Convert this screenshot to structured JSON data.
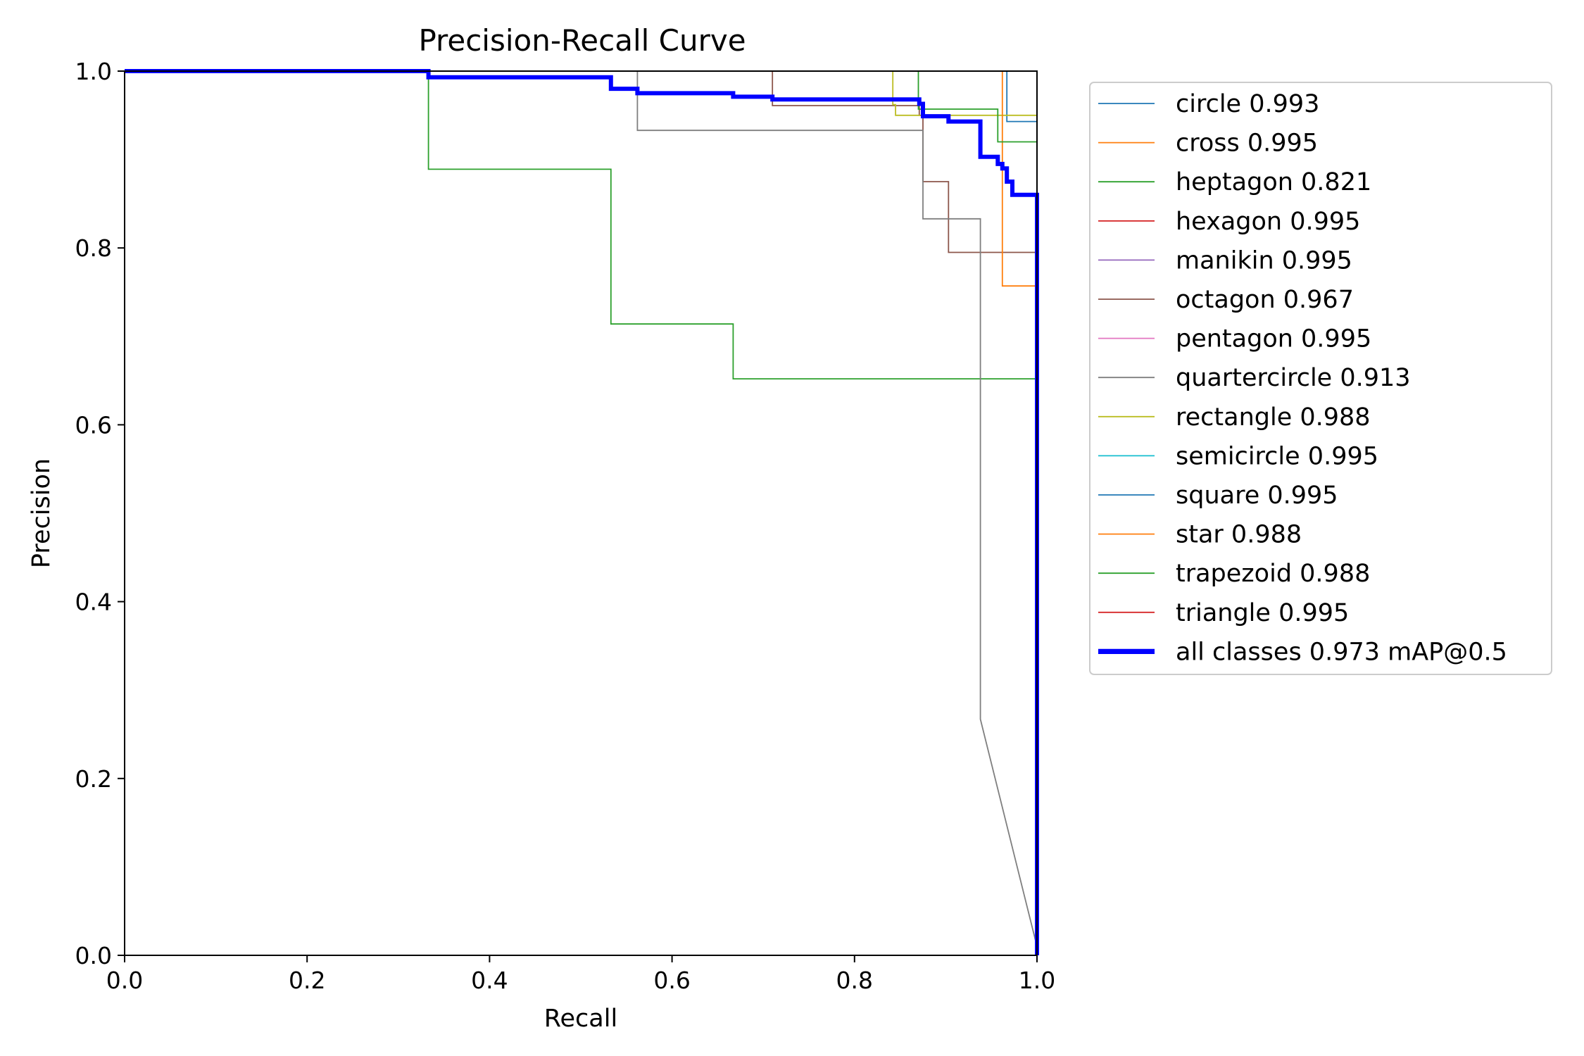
{
  "chart_data": {
    "type": "line",
    "title": "Precision-Recall Curve",
    "xlabel": "Recall",
    "ylabel": "Precision",
    "xlim": [
      0,
      1
    ],
    "ylim": [
      0,
      1
    ],
    "xticks": [
      "0.0",
      "0.2",
      "0.4",
      "0.6",
      "0.8",
      "1.0"
    ],
    "yticks": [
      "0.0",
      "0.2",
      "0.4",
      "0.6",
      "0.8",
      "1.0"
    ],
    "grid": false,
    "legend_position": "outside-right",
    "series": [
      {
        "name": "circle 0.993",
        "color": "#1f77b4",
        "width": 1,
        "x": [
          0,
          0.967,
          0.967,
          0.973,
          0.973,
          1.0,
          1.0
        ],
        "y": [
          1,
          1,
          0.943,
          0.943,
          0.943,
          0.943,
          0
        ]
      },
      {
        "name": "cross 0.995",
        "color": "#ff7f0e",
        "width": 1,
        "x": [
          0,
          1.0,
          1.0
        ],
        "y": [
          1,
          1,
          0
        ]
      },
      {
        "name": "heptagon 0.821",
        "color": "#2ca02c",
        "width": 1,
        "x": [
          0,
          0.333,
          0.333,
          0.533,
          0.533,
          0.667,
          0.667,
          1.0,
          1.0
        ],
        "y": [
          1,
          1,
          0.889,
          0.889,
          0.714,
          0.714,
          0.652,
          0.652,
          0
        ]
      },
      {
        "name": "hexagon 0.995",
        "color": "#d62728",
        "width": 1,
        "x": [
          0,
          1.0,
          1.0
        ],
        "y": [
          1,
          1,
          0
        ]
      },
      {
        "name": "manikin 0.995",
        "color": "#9467bd",
        "width": 1,
        "x": [
          0,
          1.0,
          1.0
        ],
        "y": [
          1,
          1,
          0
        ]
      },
      {
        "name": "octagon 0.967",
        "color": "#8c564b",
        "width": 1,
        "x": [
          0,
          0.71,
          0.71,
          0.871,
          0.871,
          0.875,
          0.875,
          0.903,
          0.903,
          1.0,
          1.0
        ],
        "y": [
          1,
          1,
          0.961,
          0.961,
          0.95,
          0.95,
          0.875,
          0.875,
          0.795,
          0.795,
          0
        ]
      },
      {
        "name": "pentagon 0.995",
        "color": "#e377c2",
        "width": 1,
        "x": [
          0,
          1.0,
          1.0
        ],
        "y": [
          1,
          1,
          0
        ]
      },
      {
        "name": "quartercircle 0.913",
        "color": "#7f7f7f",
        "width": 1,
        "x": [
          0,
          0.562,
          0.562,
          0.875,
          0.875,
          0.938,
          0.938,
          0.938,
          1.0
        ],
        "y": [
          1,
          1,
          0.933,
          0.933,
          0.833,
          0.833,
          0.833,
          0.267,
          0.01
        ]
      },
      {
        "name": "rectangle 0.988",
        "color": "#bcbd22",
        "width": 1,
        "x": [
          0,
          0.842,
          0.842,
          0.845,
          0.845,
          0.875,
          0.875,
          1.0,
          1.0
        ],
        "y": [
          1,
          1,
          0.962,
          0.962,
          0.95,
          0.95,
          0.95,
          0.95,
          0
        ]
      },
      {
        "name": "semicircle 0.995",
        "color": "#17becf",
        "width": 1,
        "x": [
          0,
          1.0,
          1.0
        ],
        "y": [
          1,
          1,
          0
        ]
      },
      {
        "name": "square 0.995",
        "color": "#1f77b4",
        "width": 1,
        "x": [
          0,
          1.0,
          1.0
        ],
        "y": [
          1,
          1,
          0
        ]
      },
      {
        "name": "star 0.988",
        "color": "#ff7f0e",
        "width": 1,
        "x": [
          0,
          0.962,
          0.962,
          1.0,
          1.0
        ],
        "y": [
          1,
          1,
          0.757,
          0.757,
          0
        ]
      },
      {
        "name": "trapezoid 0.988",
        "color": "#2ca02c",
        "width": 1,
        "x": [
          0,
          0.87,
          0.87,
          0.957,
          0.957,
          1.0,
          1.0
        ],
        "y": [
          1,
          1,
          0.957,
          0.957,
          0.92,
          0.92,
          0
        ]
      },
      {
        "name": "triangle 0.995",
        "color": "#d62728",
        "width": 1,
        "x": [
          0,
          1.0,
          1.0
        ],
        "y": [
          1,
          1,
          0
        ]
      },
      {
        "name": "all classes 0.973 mAP@0.5",
        "color": "#0000ff",
        "width": 4,
        "x": [
          0,
          0.333,
          0.333,
          0.533,
          0.533,
          0.562,
          0.562,
          0.667,
          0.667,
          0.71,
          0.71,
          0.871,
          0.871,
          0.875,
          0.875,
          0.903,
          0.903,
          0.938,
          0.938,
          0.957,
          0.957,
          0.962,
          0.962,
          0.967,
          0.967,
          0.973,
          0.973,
          1.0,
          1.0
        ],
        "y": [
          1,
          1,
          0.993,
          0.993,
          0.98,
          0.98,
          0.975,
          0.975,
          0.971,
          0.971,
          0.968,
          0.968,
          0.963,
          0.963,
          0.949,
          0.949,
          0.943,
          0.943,
          0.903,
          0.903,
          0.895,
          0.895,
          0.89,
          0.89,
          0.875,
          0.875,
          0.86,
          0.86,
          0
        ]
      }
    ]
  }
}
